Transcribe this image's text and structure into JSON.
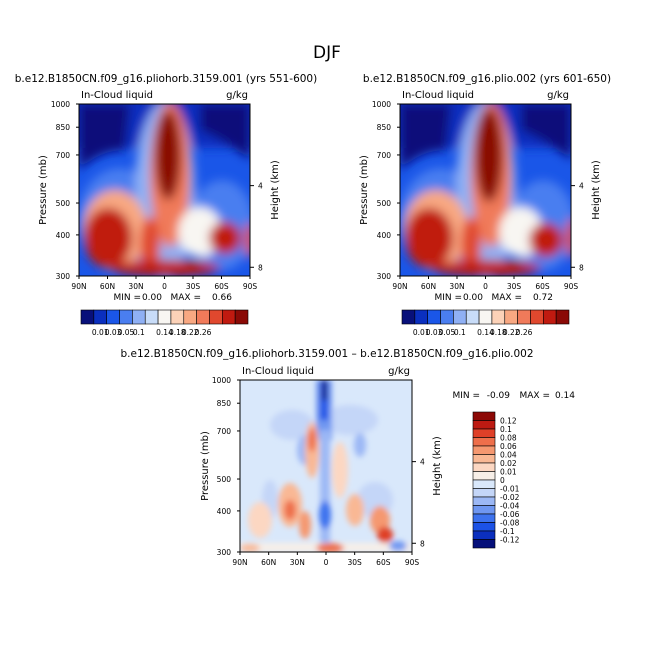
{
  "page": {
    "title": "DJF"
  },
  "palettes": {
    "abs": [
      "#08107a",
      "#0a2fbf",
      "#1a56e8",
      "#4a7ef0",
      "#8fb0f4",
      "#c8dcf8",
      "#f8f6f2",
      "#fcd2b8",
      "#f8a882",
      "#f07a5a",
      "#e0482e",
      "#c01a10",
      "#8a0a06"
    ],
    "diff": [
      "#05107a",
      "#0b2fbe",
      "#1c52e6",
      "#3d72ee",
      "#6f97f1",
      "#9cb8f5",
      "#c4d6f8",
      "#d9e8fb",
      "#f7efe8",
      "#fcd7c2",
      "#f9b894",
      "#f59870",
      "#ee6f4b",
      "#df4028",
      "#bd1a12",
      "#8c0805"
    ]
  },
  "chart_data": [
    {
      "type": "heatmap",
      "id": "panel_a",
      "title": "b.e12.B1850CN.f09_g16.pliohorb.3159.001 (yrs 551-600)",
      "left_label": "In-Cloud liquid",
      "units": "g/kg",
      "ylabel": "Pressure (mb)",
      "y2label": "Height (km)",
      "x_ticks": [
        "90N",
        "60N",
        "30N",
        "0",
        "30S",
        "60S",
        "90S"
      ],
      "y_ticks": [
        "300",
        "400",
        "500",
        "700",
        "850",
        "1000"
      ],
      "y_tick_values": [
        300,
        400,
        500,
        700,
        850,
        1000
      ],
      "y2_ticks": [
        "8",
        "4"
      ],
      "y2_tick_values": [
        8,
        4
      ],
      "ylim": [
        1000,
        300
      ],
      "xlim": [
        "90N",
        "90S"
      ],
      "min_label": "MIN =",
      "min_value": "0.00",
      "max_label": "MAX =",
      "max_value": "0.66",
      "colorbar_labels": [
        "0.01",
        "0.03",
        "0.05",
        "0.1",
        "0.14",
        "0.18",
        "0.22",
        "0.26"
      ]
    },
    {
      "type": "heatmap",
      "id": "panel_b",
      "title": "b.e12.B1850CN.f09_g16.plio.002 (yrs 601-650)",
      "left_label": "In-Cloud liquid",
      "units": "g/kg",
      "ylabel": "Pressure (mb)",
      "y2label": "Height (km)",
      "x_ticks": [
        "90N",
        "60N",
        "30N",
        "0",
        "30S",
        "60S",
        "90S"
      ],
      "y_ticks": [
        "300",
        "400",
        "500",
        "700",
        "850",
        "1000"
      ],
      "y_tick_values": [
        300,
        400,
        500,
        700,
        850,
        1000
      ],
      "y2_ticks": [
        "8",
        "4"
      ],
      "y2_tick_values": [
        8,
        4
      ],
      "ylim": [
        1000,
        300
      ],
      "xlim": [
        "90N",
        "90S"
      ],
      "min_label": "MIN =",
      "min_value": "0.00",
      "max_label": "MAX =",
      "max_value": "0.72",
      "colorbar_labels": [
        "0.01",
        "0.03",
        "0.05",
        "0.1",
        "0.14",
        "0.18",
        "0.22",
        "0.26"
      ]
    },
    {
      "type": "heatmap",
      "id": "panel_diff",
      "title": "b.e12.B1850CN.f09_g16.pliohorb.3159.001 – b.e12.B1850CN.f09_g16.plio.002",
      "left_label": "In-Cloud liquid",
      "units": "g/kg",
      "ylabel": "Pressure (mb)",
      "y2label": "Height (km)",
      "x_ticks": [
        "90N",
        "60N",
        "30N",
        "0",
        "30S",
        "60S",
        "90S"
      ],
      "y_ticks": [
        "300",
        "400",
        "500",
        "700",
        "850",
        "1000"
      ],
      "y_tick_values": [
        300,
        400,
        500,
        700,
        850,
        1000
      ],
      "y2_ticks": [
        "8",
        "4"
      ],
      "y2_tick_values": [
        8,
        4
      ],
      "ylim": [
        1000,
        300
      ],
      "xlim": [
        "90N",
        "90S"
      ],
      "min_label": "MIN =",
      "min_value": "-0.09",
      "max_label": "MAX =",
      "max_value": "0.14",
      "colorbar_labels": [
        "0.12",
        "0.1",
        "0.08",
        "0.06",
        "0.04",
        "0.02",
        "0.01",
        "0",
        "-0.01",
        "-0.02",
        "-0.04",
        "-0.06",
        "-0.08",
        "-0.1",
        "-0.12"
      ]
    }
  ]
}
